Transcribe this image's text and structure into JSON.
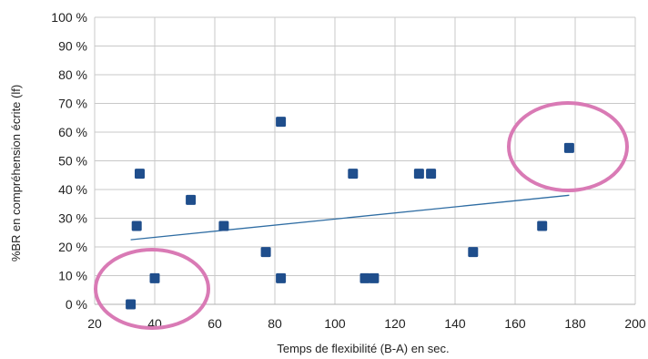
{
  "chart_data": {
    "type": "scatter",
    "title": "",
    "xlabel": "Temps de flexibilité (B-A) en sec.",
    "ylabel": "%BR en compréhension écrite (lf)",
    "xlim": [
      20,
      200
    ],
    "ylim": [
      0,
      100
    ],
    "x_ticks": [
      20,
      40,
      60,
      80,
      100,
      120,
      140,
      160,
      180,
      200
    ],
    "y_ticks": [
      0,
      10,
      20,
      30,
      40,
      50,
      60,
      70,
      80,
      90,
      100
    ],
    "y_tick_labels": [
      "0 %",
      "10 %",
      "20 %",
      "30 %",
      "40 %",
      "50 %",
      "60 %",
      "70 %",
      "80 %",
      "90 %",
      "100 %"
    ],
    "grid": true,
    "legend": "none",
    "marker_color": "#1f4e8c",
    "trendline": {
      "type": "linear",
      "x": [
        32,
        178
      ],
      "y": [
        22.5,
        38
      ],
      "color": "#2f6da3"
    },
    "points": [
      {
        "x": 32,
        "y": 0
      },
      {
        "x": 34,
        "y": 27.3
      },
      {
        "x": 35,
        "y": 45.5
      },
      {
        "x": 40,
        "y": 9.1
      },
      {
        "x": 52,
        "y": 36.4
      },
      {
        "x": 63,
        "y": 27.3
      },
      {
        "x": 77,
        "y": 18.2
      },
      {
        "x": 82,
        "y": 63.6
      },
      {
        "x": 82,
        "y": 9.1
      },
      {
        "x": 106,
        "y": 45.5
      },
      {
        "x": 110,
        "y": 9.1
      },
      {
        "x": 113,
        "y": 9.1
      },
      {
        "x": 128,
        "y": 45.5
      },
      {
        "x": 132,
        "y": 45.5
      },
      {
        "x": 146,
        "y": 18.2
      },
      {
        "x": 169,
        "y": 27.3
      },
      {
        "x": 178,
        "y": 54.5
      }
    ],
    "annotations": [
      {
        "shape": "ellipse",
        "color": "#d97ab5",
        "around": "points near x 30–45, y 0–10"
      },
      {
        "shape": "ellipse",
        "color": "#d97ab5",
        "around": "point at x 178, y 54.5"
      }
    ]
  }
}
